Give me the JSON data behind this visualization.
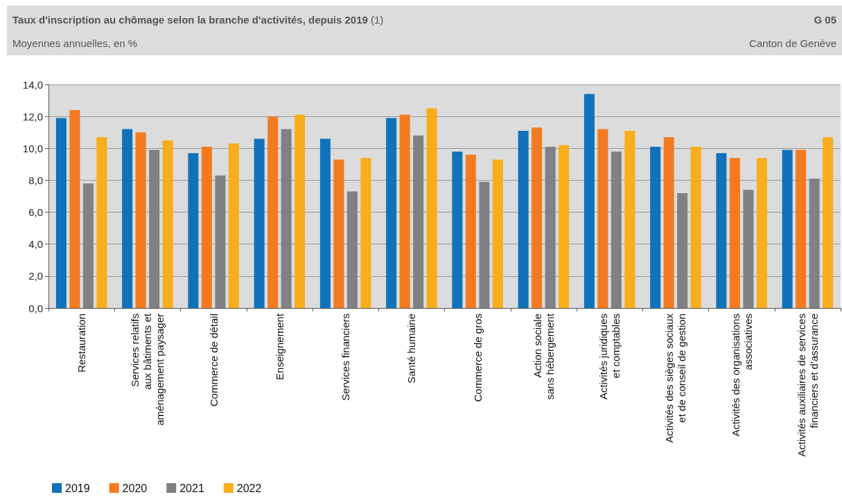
{
  "chart_data": {
    "type": "bar",
    "title": "Taux d'inscription au chômage selon la branche d'activités, depuis 2019 (1)",
    "subtitle": "Moyennes annuelles, en %",
    "annotations": [
      "G 05",
      "Canton de Genève"
    ],
    "categories": [
      "Restauration",
      "Services relatifs\naux bâtiments et\naménagement paysager",
      "Commerce de détail",
      "Enseignement",
      "Services financiers",
      "Santé humaine",
      "Commerce de gros",
      "Action sociale\nsans hébergement",
      "Activités juridiques\net comptables",
      "Activités des sièges sociaux\net de conseil de gestion",
      "Activités des organisations\nassociatives",
      "Activités auxiliaires de services\nfinanciers et d'assurance"
    ],
    "series": [
      {
        "name": "2019",
        "color": "#0f72ba",
        "values": [
          11.9,
          11.2,
          9.7,
          10.6,
          10.6,
          11.9,
          9.8,
          11.1,
          13.4,
          10.1,
          9.7,
          9.9
        ]
      },
      {
        "name": "2020",
        "color": "#f47a20",
        "values": [
          12.4,
          11.0,
          10.1,
          12.0,
          9.3,
          12.1,
          9.6,
          11.3,
          11.2,
          10.7,
          9.4,
          9.9
        ]
      },
      {
        "name": "2021",
        "color": "#808184",
        "values": [
          7.8,
          9.9,
          8.3,
          11.2,
          7.3,
          10.8,
          7.9,
          10.1,
          9.8,
          7.2,
          7.4,
          8.1
        ]
      },
      {
        "name": "2022",
        "color": "#f9ad1a",
        "values": [
          10.7,
          10.5,
          10.3,
          12.1,
          9.4,
          12.5,
          9.3,
          10.2,
          11.1,
          10.1,
          9.4,
          10.7
        ]
      }
    ],
    "ylim": [
      0,
      14
    ],
    "yticks": [
      {
        "value": 0,
        "label": "0,0"
      },
      {
        "value": 2,
        "label": "2,0"
      },
      {
        "value": 4,
        "label": "4,0"
      },
      {
        "value": 6,
        "label": "6,0"
      },
      {
        "value": 8,
        "label": "8,0"
      },
      {
        "value": 10,
        "label": "10,0"
      },
      {
        "value": 12,
        "label": "12,0"
      },
      {
        "value": 14,
        "label": "14,0"
      }
    ],
    "grid": "y",
    "legend": "bottom left"
  }
}
